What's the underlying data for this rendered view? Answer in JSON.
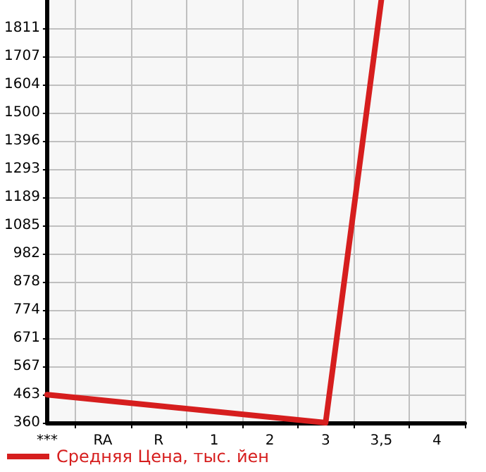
{
  "chart_data": {
    "type": "line",
    "categories": [
      "***",
      "RA",
      "R",
      "1",
      "2",
      "3",
      "3,5",
      "4"
    ],
    "series": [
      {
        "name": "Средняя Цена, тыс. йен",
        "color": "#d61e1e",
        "values": [
          463,
          null,
          null,
          null,
          null,
          360,
          1915,
          null
        ]
      }
    ],
    "ylim": [
      360,
      1915
    ],
    "yticks": [
      360,
      463,
      567,
      671,
      774,
      878,
      982,
      1085,
      1189,
      1293,
      1396,
      1500,
      1604,
      1707,
      1811
    ],
    "grid": true,
    "legend": "bottom left",
    "marker": "none",
    "line_style": "solid"
  }
}
